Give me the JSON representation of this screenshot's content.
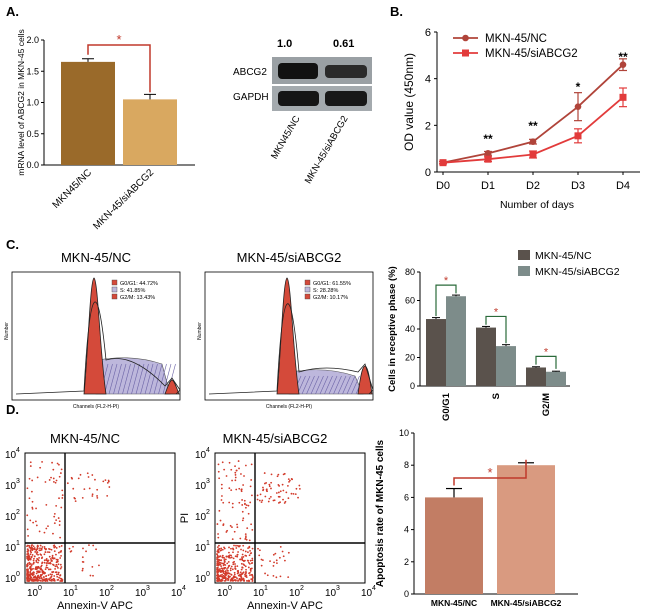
{
  "panels": {
    "A": "A.",
    "B": "B.",
    "C": "C.",
    "D": "D."
  },
  "colors": {
    "nc_bar": "#9a6a2a",
    "si_bar": "#d9a860",
    "line_nc": "#b0443a",
    "line_si": "#e23b3b",
    "sig": "#c0392b",
    "cyc_nc": "#5a524c",
    "cyc_si": "#7d8c8a",
    "apo_nc": "#c27d64",
    "apo_si": "#d99a80",
    "scatter": "#d23a2a"
  },
  "blot": {
    "values": [
      "1.0",
      "0.61"
    ],
    "row_labels": [
      "ABCG2",
      "GAPDH"
    ],
    "lane_labels": [
      "MKN45/NC",
      "MKN-45/siABCG2"
    ]
  },
  "flow": {
    "titles": [
      "MKN-45/NC",
      "MKN-45/siABCG2"
    ],
    "ylabel": "Number",
    "xlabel": "Channels (FL2-H-PI)",
    "legend_nc": [
      "G0/G1: 44.72%",
      "S: 41.85%",
      "G2/M: 13.43%"
    ],
    "legend_si": [
      "G0/G1: 61.55%",
      "S: 28.28%",
      "G2/M: 10.17%"
    ]
  },
  "scatter": {
    "titles": [
      "MKN-45/NC",
      "MKN-45/siABCG2"
    ],
    "ylabel": "PI",
    "xlabel": "Annexin-V APC",
    "ticks": [
      "0",
      "1",
      "2",
      "3",
      "4"
    ]
  },
  "chart_data": [
    {
      "id": "A",
      "type": "bar",
      "categories": [
        "MKN45/NC",
        "MKN-45/siABCG2"
      ],
      "values": [
        1.65,
        1.05
      ],
      "errors": [
        0.05,
        0.08
      ],
      "ylabel": "mRNA level of ABCG2 in MKN-45 cells",
      "ylim": [
        0,
        2.0
      ],
      "yticks": [
        "0.0",
        "0.5",
        "1.0",
        "1.5",
        "2.0"
      ],
      "significance": "*"
    },
    {
      "id": "B",
      "type": "line",
      "x": [
        "D0",
        "D1",
        "D2",
        "D3",
        "D4"
      ],
      "series": [
        {
          "name": "MKN-45/NC",
          "values": [
            0.4,
            0.8,
            1.3,
            2.8,
            4.6
          ],
          "errors": [
            0.05,
            0.08,
            0.1,
            0.6,
            0.25
          ]
        },
        {
          "name": "MKN-45/siABCG2",
          "values": [
            0.4,
            0.55,
            0.75,
            1.55,
            3.2
          ],
          "errors": [
            0.05,
            0.1,
            0.15,
            0.3,
            0.4
          ]
        }
      ],
      "xlabel": "Number of days",
      "ylabel": "OD value (450nm)",
      "ylim": [
        0,
        6
      ],
      "yticks": [
        "0",
        "2",
        "4",
        "6"
      ],
      "annotations": [
        "**",
        "**",
        "*",
        "**"
      ]
    },
    {
      "id": "C",
      "type": "bar",
      "categories": [
        "G0/G1",
        "S",
        "G2/M"
      ],
      "series": [
        {
          "name": "MKN-45/NC",
          "values": [
            47,
            41,
            13
          ],
          "errors": [
            1.0,
            0.8,
            0.5
          ]
        },
        {
          "name": "MKN-45/siABCG2",
          "values": [
            63,
            28,
            10
          ],
          "errors": [
            0.8,
            1.0,
            0.4
          ]
        }
      ],
      "ylabel": "Cells in receptive phase (%)",
      "ylim": [
        0,
        80
      ],
      "yticks": [
        "0",
        "20",
        "40",
        "60",
        "80"
      ],
      "significance": [
        "*",
        "*",
        "*"
      ]
    },
    {
      "id": "D",
      "type": "bar",
      "categories": [
        "MKN-45/NC",
        "MKN-45/siABCG2"
      ],
      "values": [
        6.0,
        8.0
      ],
      "errors": [
        0.55,
        0.15
      ],
      "ylabel": "Apoptosis rate of MKN-45 cells",
      "ylim": [
        0,
        10
      ],
      "yticks": [
        "0",
        "2",
        "4",
        "6",
        "8",
        "10"
      ],
      "significance": "*"
    }
  ]
}
